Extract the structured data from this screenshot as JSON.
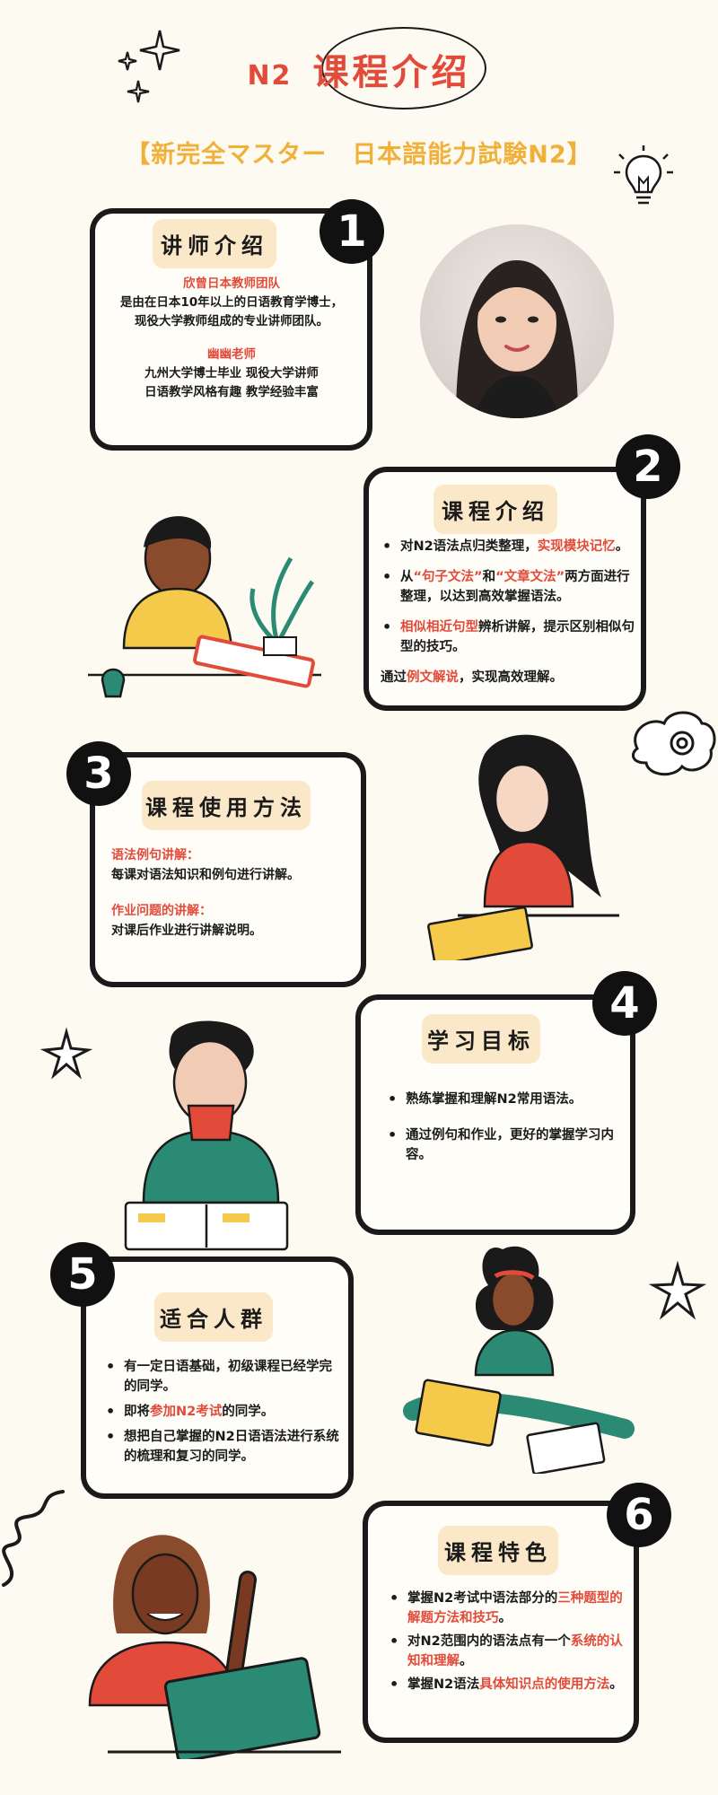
{
  "header": {
    "n2": "N2",
    "title": "课程介绍",
    "subtitle": "【新完全マスター　日本語能力試験N2】"
  },
  "sections": [
    {
      "number": "1",
      "heading": "讲师介绍",
      "team_title": "欣曾日本教师团队",
      "team_desc_1": "是由在日本10年以上的日语教育学博士，",
      "team_desc_2": "现役大学教师组成的专业讲师团队。",
      "teacher_name": "幽幽老师",
      "teacher_desc_1": "九州大学博士毕业 现役大学讲师",
      "teacher_desc_2": "日语教学风格有趣 教学经验丰富"
    },
    {
      "number": "2",
      "heading": "课程介绍",
      "b1_a": "对N2语法点归类整理，",
      "b1_red": "实现模块记忆",
      "b1_b": "。",
      "b2_a": "从",
      "b2_red1": "“句子文法”",
      "b2_b": "和",
      "b2_red2": "“文章文法”",
      "b2_c": "两方面进行整理，以达到高效掌握语法。",
      "b3_red": "相似相近句型",
      "b3_a": "辨析讲解，提示区别相似句型的技巧。",
      "p_a": "通过",
      "p_red": "例文解说",
      "p_b": "，实现高效理解。"
    },
    {
      "number": "3",
      "heading": "课程使用方法",
      "item1_title": "语法例句讲解：",
      "item1_text": "每课对语法知识和例句进行讲解。",
      "item2_title": "作业问题的讲解：",
      "item2_text": "对课后作业进行讲解说明。"
    },
    {
      "number": "4",
      "heading": "学习目标",
      "b1": "熟练掌握和理解N2常用语法。",
      "b2": "通过例句和作业，更好的掌握学习内容。"
    },
    {
      "number": "5",
      "heading": "适合人群",
      "b1": "有一定日语基础，初级课程已经学完的同学。",
      "b2_a": "即将",
      "b2_red": "参加N2考试",
      "b2_b": "的同学。",
      "b3": "想把自己掌握的N2日语语法进行系统的梳理和复习的同学。"
    },
    {
      "number": "6",
      "heading": "课程特色",
      "b1_a": "掌握N2考试中语法部分的",
      "b1_red": "三种题型的解题方法和技巧",
      "b1_b": "。",
      "b2_a": "对N2范围内的语法点有一个",
      "b2_red": "系统的认知和理解",
      "b2_b": "。",
      "b3_a": "掌握N2语法",
      "b3_red": "具体知识点的使用方法",
      "b3_b": "。"
    }
  ],
  "colors": {
    "accent_red": "#e24b3a",
    "subtitle_gold": "#f0b03a",
    "pill_bg": "#fbe8c8",
    "background": "#fdfaf2"
  }
}
